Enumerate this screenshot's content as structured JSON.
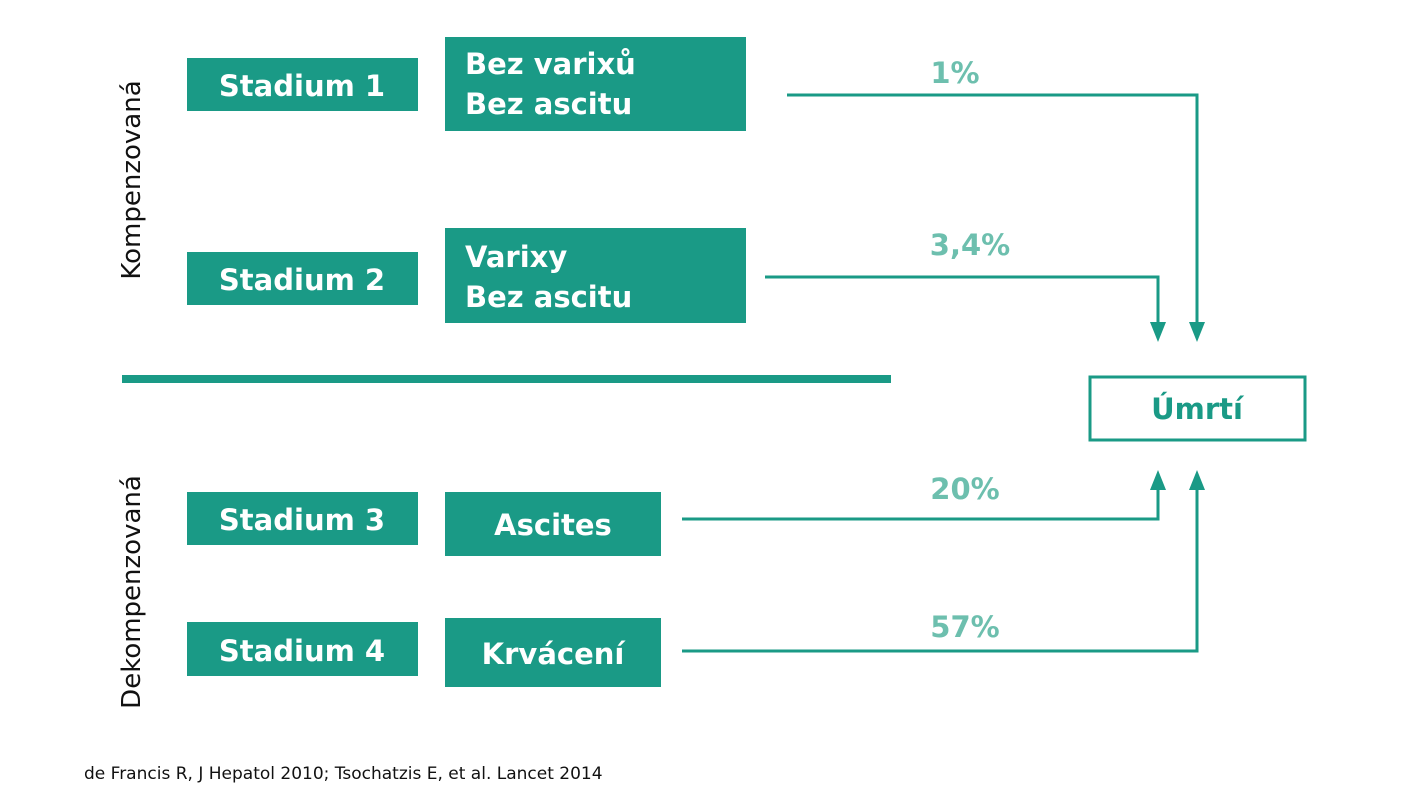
{
  "sections": [
    {
      "label": "Kompenzovaná"
    },
    {
      "label": "Dekompenzovaná"
    }
  ],
  "stages": [
    {
      "stage": "Stadium 1",
      "description": [
        "Bez varixů",
        "Bez ascitu"
      ],
      "mortality": "1%"
    },
    {
      "stage": "Stadium 2",
      "description": [
        "Varixy",
        "Bez ascitu"
      ],
      "mortality": "3,4%"
    },
    {
      "stage": "Stadium 3",
      "description": [
        "Ascites"
      ],
      "mortality": "20%"
    },
    {
      "stage": "Stadium 4",
      "description": [
        "Krvácení"
      ],
      "mortality": "57%"
    }
  ],
  "outcome": "Úmrtí",
  "citation": "de Francis R, J Hepatol 2010; Tsochatzis E, et al. Lancet 2014"
}
